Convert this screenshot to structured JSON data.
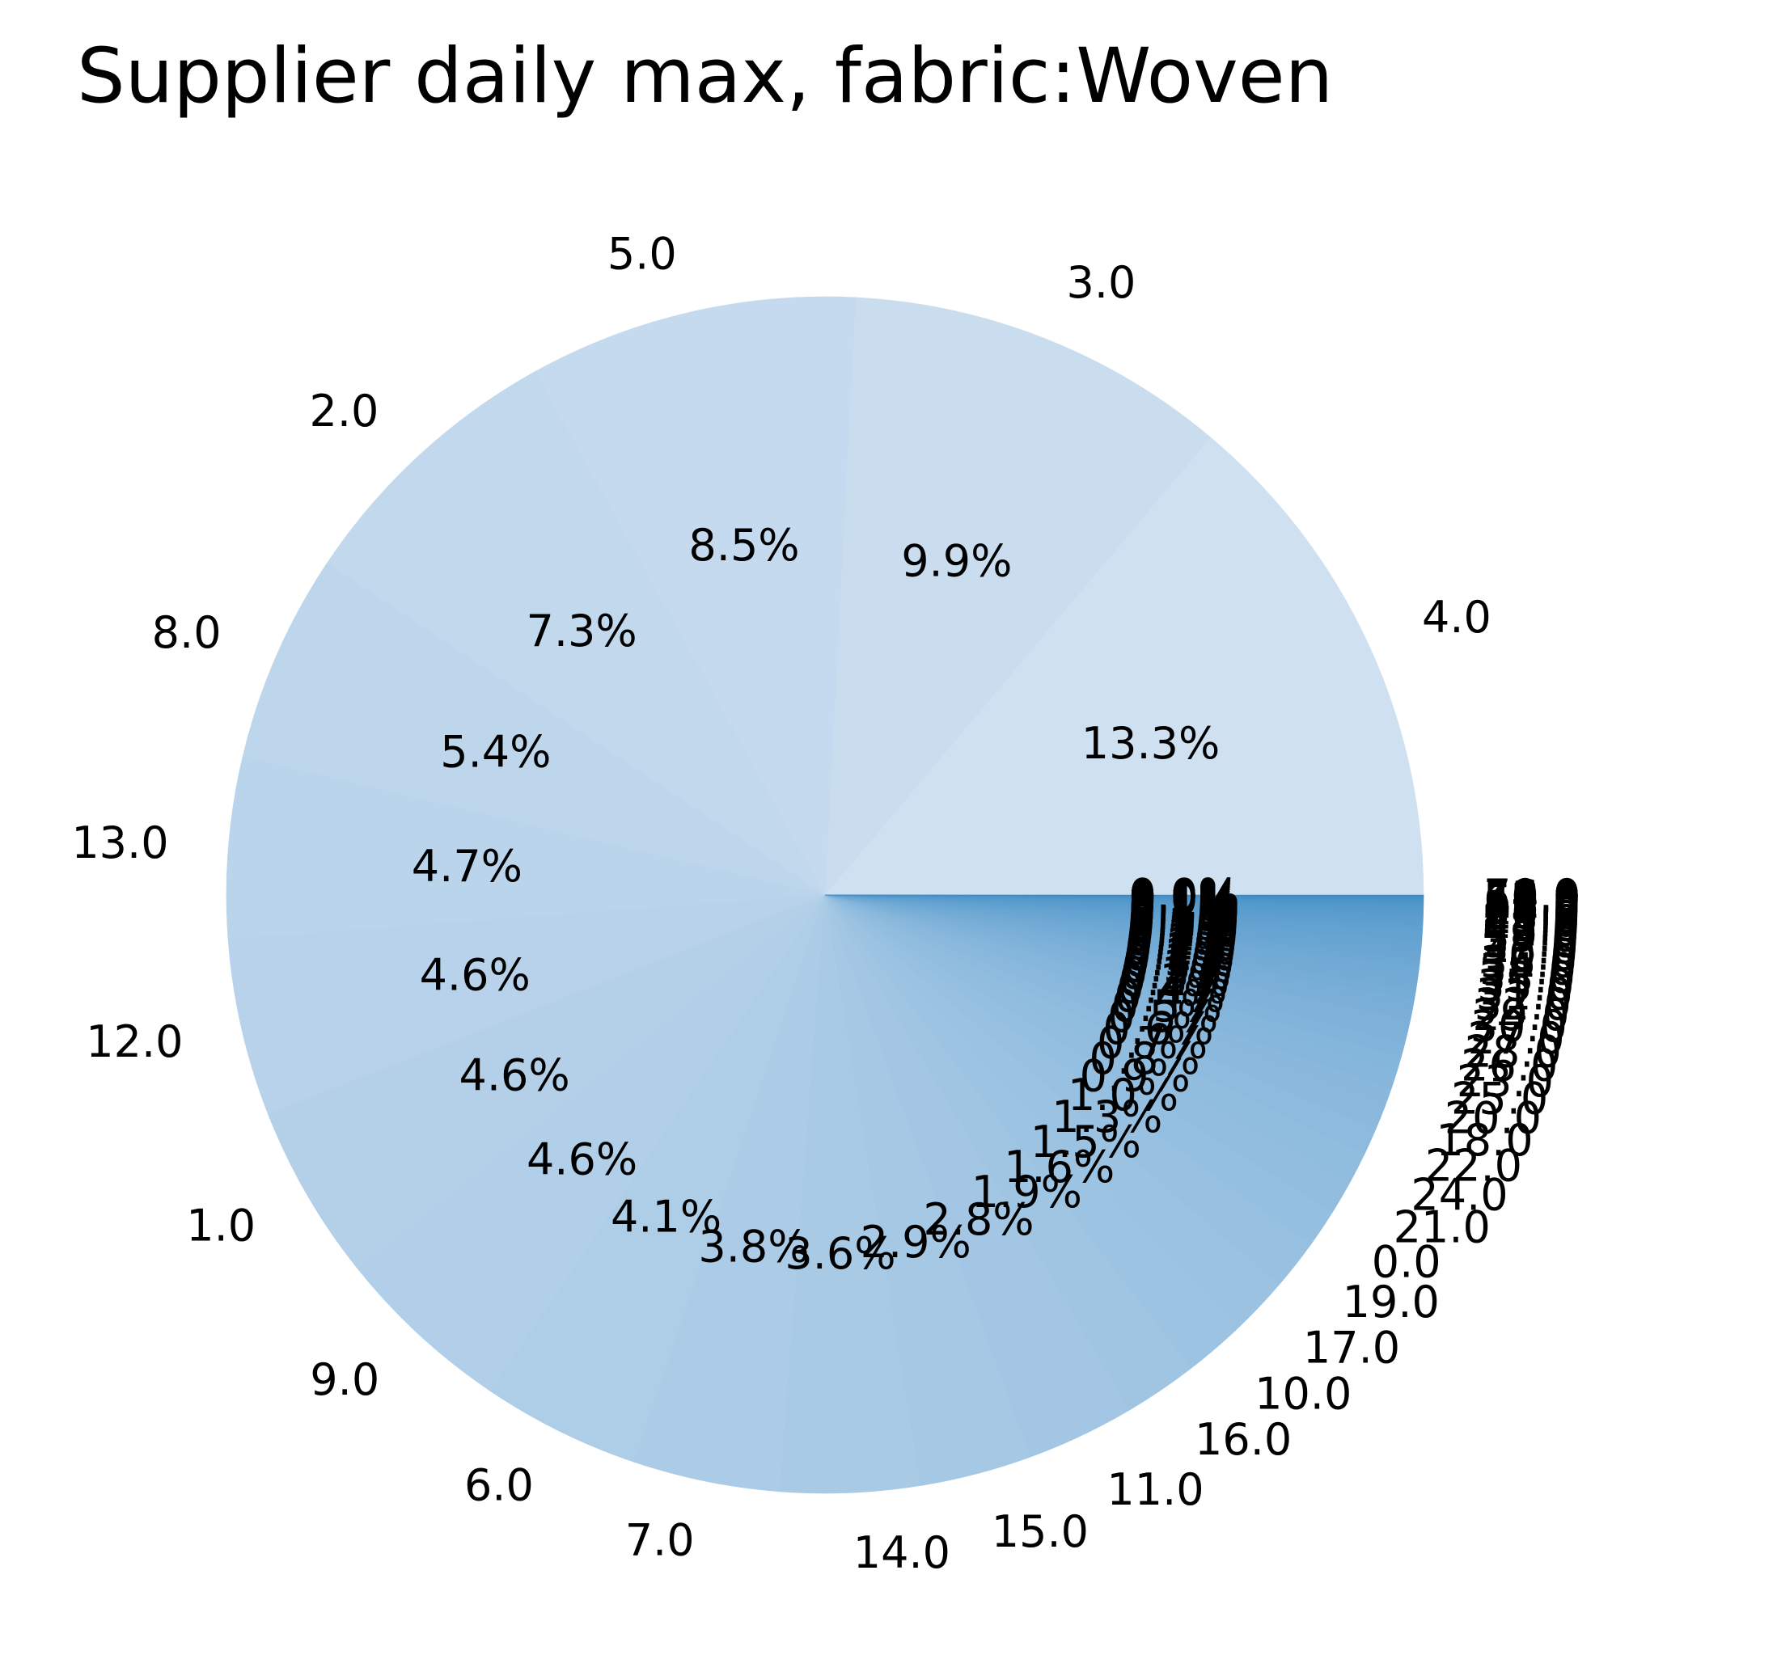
{
  "chart_data": {
    "type": "pie",
    "title": "Supplier daily max, fabric:Woven",
    "legend": "none",
    "color_range": [
      "#cfe0f1",
      "#3a8ac4"
    ],
    "slices": [
      {
        "label": "4.0",
        "value": 13.3,
        "pct_label": "13.3%"
      },
      {
        "label": "3.0",
        "value": 9.9,
        "pct_label": "9.9%"
      },
      {
        "label": "5.0",
        "value": 8.5,
        "pct_label": "8.5%"
      },
      {
        "label": "2.0",
        "value": 7.3,
        "pct_label": "7.3%"
      },
      {
        "label": "8.0",
        "value": 5.4,
        "pct_label": "5.4%"
      },
      {
        "label": "13.0",
        "value": 4.7,
        "pct_label": "4.7%"
      },
      {
        "label": "12.0",
        "value": 4.6,
        "pct_label": "4.6%"
      },
      {
        "label": "1.0",
        "value": 4.6,
        "pct_label": "4.6%"
      },
      {
        "label": "9.0",
        "value": 4.6,
        "pct_label": "4.6%"
      },
      {
        "label": "6.0",
        "value": 4.1,
        "pct_label": "4.1%"
      },
      {
        "label": "7.0",
        "value": 3.8,
        "pct_label": "3.8%"
      },
      {
        "label": "14.0",
        "value": 3.6,
        "pct_label": "3.6%"
      },
      {
        "label": "15.0",
        "value": 2.9,
        "pct_label": "2.9%"
      },
      {
        "label": "11.0",
        "value": 2.8,
        "pct_label": "2.8%"
      },
      {
        "label": "16.0",
        "value": 1.9,
        "pct_label": "1.9%"
      },
      {
        "label": "10.0",
        "value": 1.6,
        "pct_label": "1.6%"
      },
      {
        "label": "17.0",
        "value": 1.5,
        "pct_label": "1.5%"
      },
      {
        "label": "19.0",
        "value": 1.3,
        "pct_label": "1.3%"
      },
      {
        "label": "0.0",
        "value": 1.0,
        "pct_label": "1.0%"
      },
      {
        "label": "21.0",
        "value": 0.9,
        "pct_label": "0.9%"
      },
      {
        "label": "24.0",
        "value": 0.8,
        "pct_label": "0.8%"
      },
      {
        "label": "22.0",
        "value": 0.7,
        "pct_label": "0.7%"
      },
      {
        "label": "18.0",
        "value": 0.6,
        "pct_label": "0.6%"
      },
      {
        "label": "20.0",
        "value": 0.5,
        "pct_label": "0.5%"
      },
      {
        "label": "25.0",
        "value": 0.45,
        "pct_label": "0.5%"
      },
      {
        "label": "23.0",
        "value": 0.4,
        "pct_label": "0.4%"
      },
      {
        "label": "26.0",
        "value": 0.35,
        "pct_label": "0.4%"
      },
      {
        "label": "28.0",
        "value": 0.32,
        "pct_label": "0.3%"
      },
      {
        "label": "27.0",
        "value": 0.3,
        "pct_label": "0.3%"
      },
      {
        "label": "30.0",
        "value": 0.28,
        "pct_label": "0.3%"
      },
      {
        "label": "29.0",
        "value": 0.26,
        "pct_label": "0.3%"
      },
      {
        "label": "32.0",
        "value": 0.24,
        "pct_label": "0.2%"
      },
      {
        "label": "31.0",
        "value": 0.22,
        "pct_label": "0.2%"
      },
      {
        "label": "35.0",
        "value": 0.2,
        "pct_label": "0.2%"
      },
      {
        "label": "33.0",
        "value": 0.19,
        "pct_label": "0.2%"
      },
      {
        "label": "34.0",
        "value": 0.18,
        "pct_label": "0.2%"
      },
      {
        "label": "36.0",
        "value": 0.17,
        "pct_label": "0.2%"
      },
      {
        "label": "40.0",
        "value": 0.16,
        "pct_label": "0.2%"
      },
      {
        "label": "38.0",
        "value": 0.15,
        "pct_label": "0.2%"
      },
      {
        "label": "37.0",
        "value": 0.14,
        "pct_label": "0.1%"
      },
      {
        "label": "39.0",
        "value": 0.13,
        "pct_label": "0.1%"
      },
      {
        "label": "42.0",
        "value": 0.12,
        "pct_label": "0.1%"
      },
      {
        "label": "45.0",
        "value": 0.11,
        "pct_label": "0.1%"
      },
      {
        "label": "41.0",
        "value": 0.1,
        "pct_label": "0.1%"
      },
      {
        "label": "43.0",
        "value": 0.09,
        "pct_label": "0.1%"
      },
      {
        "label": "50.0",
        "value": 0.08,
        "pct_label": "0.1%"
      },
      {
        "label": "44.0",
        "value": 0.07,
        "pct_label": "0.1%"
      },
      {
        "label": "48.0",
        "value": 0.06,
        "pct_label": "0.1%"
      },
      {
        "label": "46.0",
        "value": 0.05,
        "pct_label": "0.1%"
      },
      {
        "label": "47.0",
        "value": 0.04,
        "pct_label": "0.0%"
      },
      {
        "label": "49.0",
        "value": 0.03,
        "pct_label": "0.0%"
      },
      {
        "label": "55.0",
        "value": 0.03,
        "pct_label": "0.0%"
      },
      {
        "label": "60.0",
        "value": 0.02,
        "pct_label": "0.0%"
      },
      {
        "label": "52.0",
        "value": 0.02,
        "pct_label": "0.0%"
      },
      {
        "label": "51.0",
        "value": 0.02,
        "pct_label": "0.0%"
      },
      {
        "label": "53.0",
        "value": 0.01,
        "pct_label": "0.0%"
      },
      {
        "label": "54.0",
        "value": 0.01,
        "pct_label": "0.0%"
      },
      {
        "label": "56.0",
        "value": 0.01,
        "pct_label": "0.0%"
      },
      {
        "label": "58.0",
        "value": 0.01,
        "pct_label": "0.0%"
      },
      {
        "label": "70.0",
        "value": 0.01,
        "pct_label": "0.0%"
      }
    ]
  }
}
